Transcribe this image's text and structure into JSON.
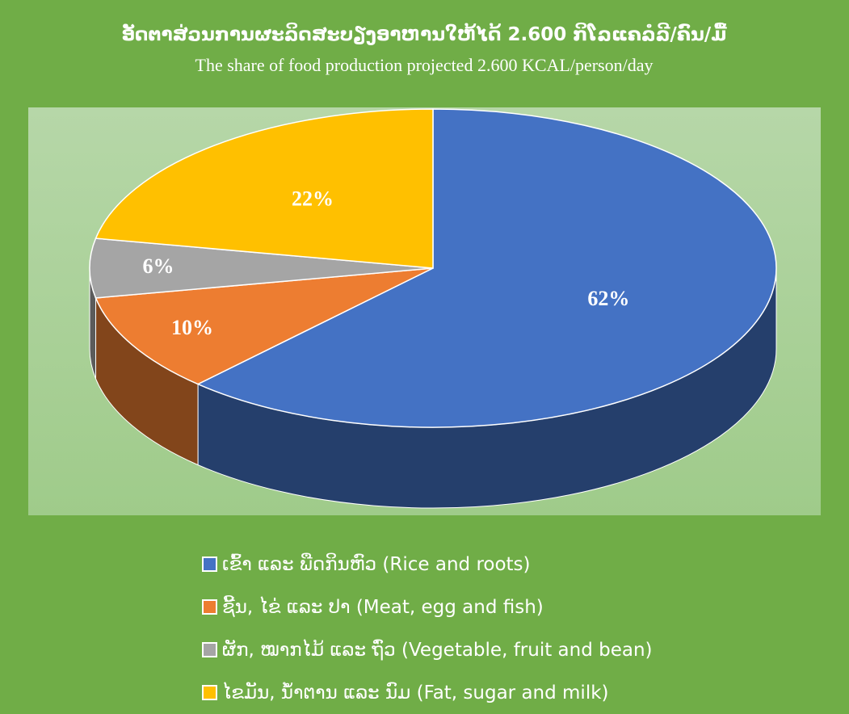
{
  "chart_data": {
    "type": "pie3d",
    "title": "ອັດຕາສ່ວນການຜະລິດສະບຽງອາຫານໃຫ້ໄດ້ 2.600 ກິໂລແຄລໍລີ/ຄົນ/ມື້",
    "subtitle": "The share of food production projected 2.600 KCAL/person/day",
    "categories": [
      "ເຂົ້າ ແລະ ພືດກິນຫົວ (Rice and roots)",
      "ຊີ້ນ, ໄຂ່ ແລະ ປາ (Meat, egg and fish)",
      "ຜັກ, ໝາກໄມ້ ແລະ ຖົ່ວ (Vegetable, fruit and bean)",
      "ໄຂມັນ, ນ້ຳຕານ ແລະ ນົມ (Fat, sugar and milk)"
    ],
    "values": [
      62,
      10,
      6,
      22
    ],
    "value_labels": [
      "62%",
      "10%",
      "6%",
      "22%"
    ],
    "colors": [
      "#4472c4",
      "#ed7d31",
      "#a5a5a5",
      "#ffc000"
    ]
  }
}
